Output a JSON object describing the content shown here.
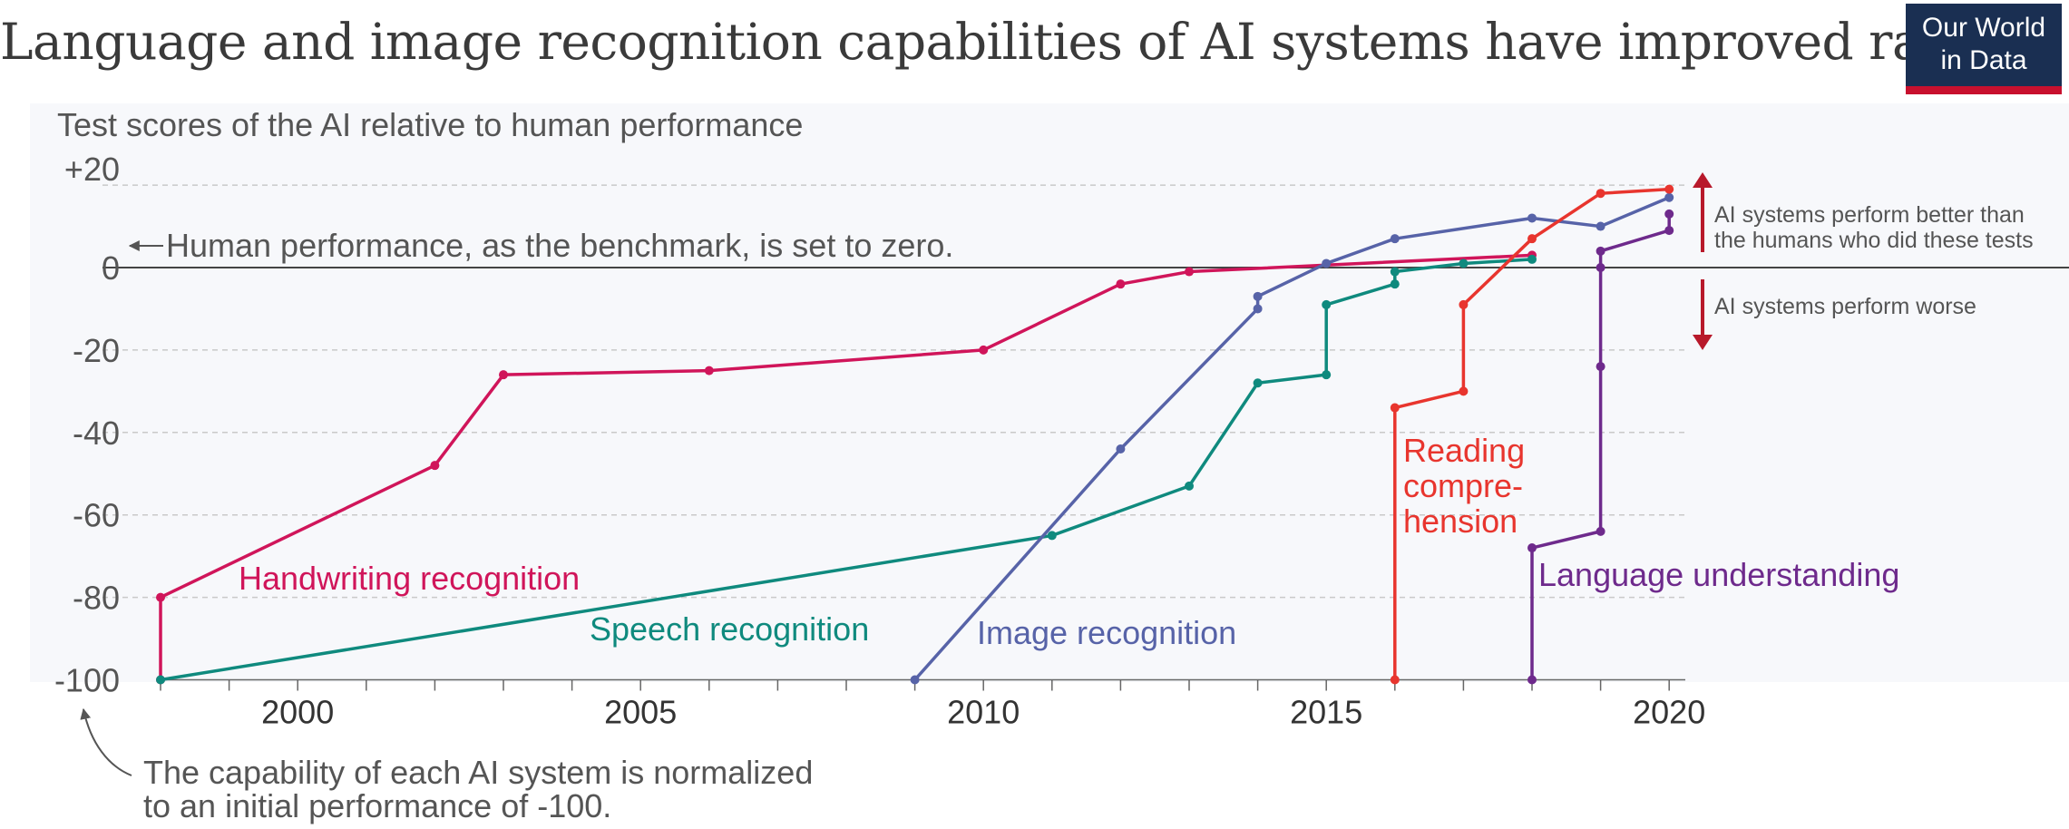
{
  "title": "Language and image recognition capabilities of AI systems have improved rapidly",
  "logo": {
    "line1": "Our World",
    "line2": "in Data",
    "bg": "#1a2f52",
    "accent": "#c8102e"
  },
  "annotations": {
    "subtitle": "Test scores of the AI relative to human performance",
    "zero_note": "Human performance, as the benchmark, is set to zero.",
    "better": [
      "AI systems perform better than",
      "the humans who did these tests"
    ],
    "worse": "AI systems perform worse",
    "normalized": [
      "The capability of each AI system is normalized",
      "to an initial performance of -100."
    ]
  },
  "chart_data": {
    "type": "line",
    "ylim": [
      -100,
      20
    ],
    "xlim": [
      1998,
      2020
    ],
    "ytick_labels": [
      "+20",
      "0",
      "-20",
      "-40",
      "-60",
      "-80",
      "-100"
    ],
    "ytick_values": [
      20,
      0,
      -20,
      -40,
      -60,
      -80,
      -100
    ],
    "xtick_labels": [
      "2000",
      "2005",
      "2010",
      "2015",
      "2020"
    ],
    "xtick_values": [
      2000,
      2005,
      2010,
      2015,
      2020
    ],
    "grid": true,
    "series": [
      {
        "name": "Handwriting recognition",
        "color": "#d0155a",
        "x": [
          1998,
          1998,
          2002,
          2003,
          2006,
          2010,
          2012,
          2013,
          2018
        ],
        "y": [
          -100,
          -80,
          -48,
          -26,
          -25,
          -20,
          -4,
          -1,
          3
        ]
      },
      {
        "name": "Speech recognition",
        "color": "#0f8a7e",
        "x": [
          1998,
          2011,
          2013,
          2014,
          2015,
          2015,
          2016,
          2016,
          2017,
          2018
        ],
        "y": [
          -100,
          -65,
          -53,
          -28,
          -26,
          -9,
          -4,
          -1,
          1,
          2
        ]
      },
      {
        "name": "Image recognition",
        "color": "#5763a8",
        "x": [
          2009,
          2012,
          2014,
          2014,
          2015,
          2016,
          2018,
          2019,
          2020
        ],
        "y": [
          -100,
          -44,
          -10,
          -7,
          1,
          7,
          12,
          10,
          17
        ]
      },
      {
        "name": "Reading comprehension",
        "color": "#e8352e",
        "x": [
          2016,
          2016,
          2017,
          2017,
          2018,
          2019,
          2020
        ],
        "y": [
          -100,
          -34,
          -30,
          -9,
          7,
          18,
          19
        ]
      },
      {
        "name": "Language understanding",
        "color": "#6e2a8c",
        "x": [
          2018,
          2018,
          2019,
          2019,
          2019,
          2019,
          2020,
          2020
        ],
        "y": [
          -100,
          -68,
          -64,
          -24,
          0,
          4,
          9,
          13
        ]
      }
    ],
    "series_labels": [
      {
        "lines": [
          "Handwriting recognition"
        ]
      },
      {
        "lines": [
          "Speech recognition"
        ]
      },
      {
        "lines": [
          "Image recognition"
        ]
      },
      {
        "lines": [
          "Reading",
          "compre-",
          "hension"
        ]
      },
      {
        "lines": [
          "Language understanding"
        ]
      }
    ]
  }
}
